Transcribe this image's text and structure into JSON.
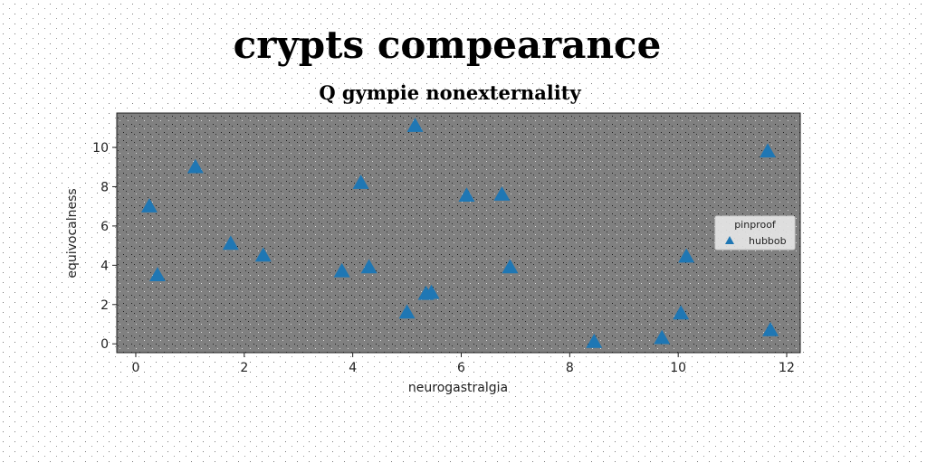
{
  "chart_data": {
    "type": "scatter",
    "suptitle": "crypts compearance",
    "title": "Q gympie nonexternality",
    "xlabel": "neurogastralgia",
    "ylabel": "equivocalness",
    "xlim": [
      -0.35,
      12.25
    ],
    "ylim": [
      -0.45,
      11.75
    ],
    "xticks": [
      0,
      2,
      4,
      6,
      8,
      10,
      12
    ],
    "yticks": [
      0,
      2,
      4,
      6,
      8,
      10
    ],
    "grid": false,
    "legend": {
      "title": "pinproof",
      "placement": "center-right"
    },
    "series": [
      {
        "name": "hubbob",
        "marker": "triangle",
        "color": "#1f77b4",
        "points": [
          [
            0.25,
            7.0
          ],
          [
            0.4,
            3.5
          ],
          [
            1.1,
            9.0
          ],
          [
            1.75,
            5.1
          ],
          [
            2.35,
            4.5
          ],
          [
            3.8,
            3.7
          ],
          [
            4.15,
            8.2
          ],
          [
            4.3,
            3.9
          ],
          [
            5.0,
            1.6
          ],
          [
            5.15,
            11.1
          ],
          [
            5.35,
            2.55
          ],
          [
            5.45,
            2.6
          ],
          [
            6.1,
            7.55
          ],
          [
            6.75,
            7.6
          ],
          [
            6.9,
            3.9
          ],
          [
            8.45,
            0.1
          ],
          [
            9.7,
            0.3
          ],
          [
            10.05,
            1.55
          ],
          [
            10.15,
            4.45
          ],
          [
            11.65,
            9.8
          ],
          [
            11.7,
            0.7
          ]
        ]
      }
    ]
  },
  "colors": {
    "plot_bg": "#808080",
    "page_bg": "#ffffff",
    "marker": "#1f77b4"
  }
}
